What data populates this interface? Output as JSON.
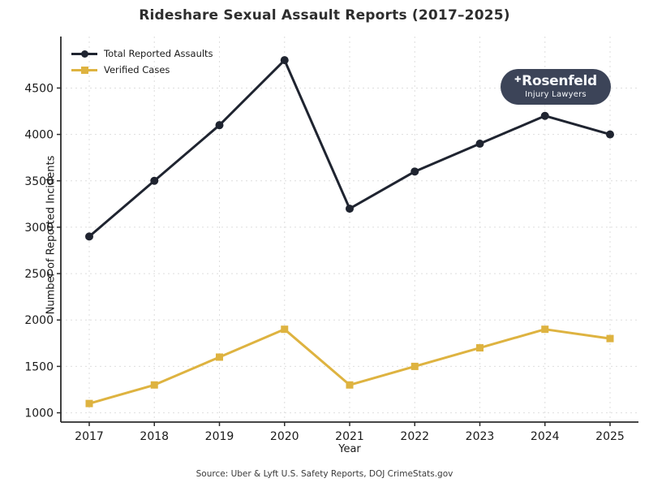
{
  "chart_data": {
    "type": "line",
    "title": "Rideshare Sexual Assault Reports (2017–2025)",
    "xlabel": "Year",
    "ylabel": "Number of Reported Incidents",
    "categories": [
      "2017",
      "2018",
      "2019",
      "2020",
      "2021",
      "2022",
      "2023",
      "2024",
      "2025"
    ],
    "series": [
      {
        "name": "Total Reported Assaults",
        "color": "#1f2430",
        "marker": "circle",
        "values": [
          2900,
          3500,
          4100,
          4800,
          3200,
          3600,
          3900,
          4200,
          4000
        ]
      },
      {
        "name": "Verified Cases",
        "color": "#deb340",
        "marker": "square",
        "values": [
          1100,
          1300,
          1600,
          1900,
          1300,
          1500,
          1700,
          1900,
          1800
        ]
      }
    ],
    "yticks": [
      1000,
      1500,
      2000,
      2500,
      3000,
      3500,
      4000,
      4500
    ],
    "ylim": [
      900,
      5055
    ],
    "grid": true,
    "grid_color": "#dedede",
    "spine_color": "#2b2b2b",
    "legend_position": "upper left"
  },
  "logo": {
    "cross": "✚",
    "name": "Rosenfeld",
    "tagline": "Injury Lawyers",
    "bg": "#3c4458"
  },
  "footer": {
    "source": "Source: Uber & Lyft U.S. Safety Reports, DOJ CrimeStats.gov"
  }
}
